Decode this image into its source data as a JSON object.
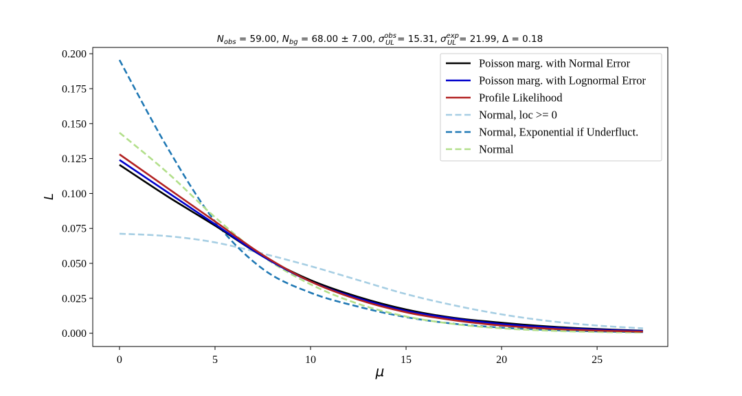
{
  "chart_data": {
    "type": "line",
    "title": "N_obs = 59.00, N_bg = 68.00 ± 7.00, σ_UL^obs = 15.31, σ_UL^exp = 21.99, Δ = 0.18",
    "title_parts": {
      "n_obs": "59.00",
      "n_bg": "68.00",
      "n_bg_err": "7.00",
      "sigma_obs": "15.31",
      "sigma_exp": "21.99",
      "delta": "0.18"
    },
    "xlabel": "μ",
    "ylabel": "L",
    "xlim": [
      -1.4,
      28.7
    ],
    "ylim": [
      -0.0095,
      0.2045
    ],
    "xticks": [
      0,
      5,
      10,
      15,
      20,
      25
    ],
    "xtick_labels": [
      "0",
      "5",
      "10",
      "15",
      "20",
      "25"
    ],
    "yticks": [
      0.0,
      0.025,
      0.05,
      0.075,
      0.1,
      0.125,
      0.15,
      0.175,
      0.2
    ],
    "ytick_labels": [
      "0.000",
      "0.025",
      "0.050",
      "0.075",
      "0.100",
      "0.125",
      "0.150",
      "0.175",
      "0.200"
    ],
    "grid": false,
    "legend_position": "top-right",
    "x": [
      0,
      2.5,
      5,
      7.5,
      10,
      12.5,
      15,
      17.5,
      20,
      22.5,
      25,
      27.4
    ],
    "series": [
      {
        "name": "Poisson marg. with Normal Error",
        "color": "#000000",
        "dash": "solid",
        "values": [
          0.1205,
          0.098,
          0.077,
          0.055,
          0.038,
          0.026,
          0.017,
          0.011,
          0.0075,
          0.0048,
          0.003,
          0.0018
        ]
      },
      {
        "name": "Poisson marg. with Lognormal Error",
        "color": "#0000cc",
        "dash": "solid",
        "values": [
          0.124,
          0.101,
          0.078,
          0.055,
          0.037,
          0.025,
          0.016,
          0.0105,
          0.0066,
          0.0042,
          0.0026,
          0.0016
        ]
      },
      {
        "name": "Profile Likelihood",
        "color": "#b22222",
        "dash": "solid",
        "values": [
          0.128,
          0.104,
          0.08,
          0.056,
          0.037,
          0.024,
          0.015,
          0.0093,
          0.0055,
          0.0032,
          0.0019,
          0.0011
        ]
      },
      {
        "name": "Normal, loc >= 0",
        "color": "#a6cee3",
        "dash": "dashed",
        "values": [
          0.0712,
          0.0695,
          0.065,
          0.057,
          0.048,
          0.038,
          0.028,
          0.02,
          0.0135,
          0.0087,
          0.0055,
          0.0035
        ]
      },
      {
        "name": "Normal, Exponential if Underfluct.",
        "color": "#1f78b4",
        "dash": "dashed",
        "values": [
          0.1955,
          0.133,
          0.08,
          0.046,
          0.029,
          0.019,
          0.0115,
          0.0068,
          0.004,
          0.0023,
          0.0013,
          0.0008
        ]
      },
      {
        "name": "Normal",
        "color": "#b2df8a",
        "dash": "dashed",
        "values": [
          0.1435,
          0.115,
          0.083,
          0.055,
          0.035,
          0.021,
          0.012,
          0.0066,
          0.0035,
          0.0018,
          0.0009,
          0.0005
        ]
      }
    ]
  }
}
